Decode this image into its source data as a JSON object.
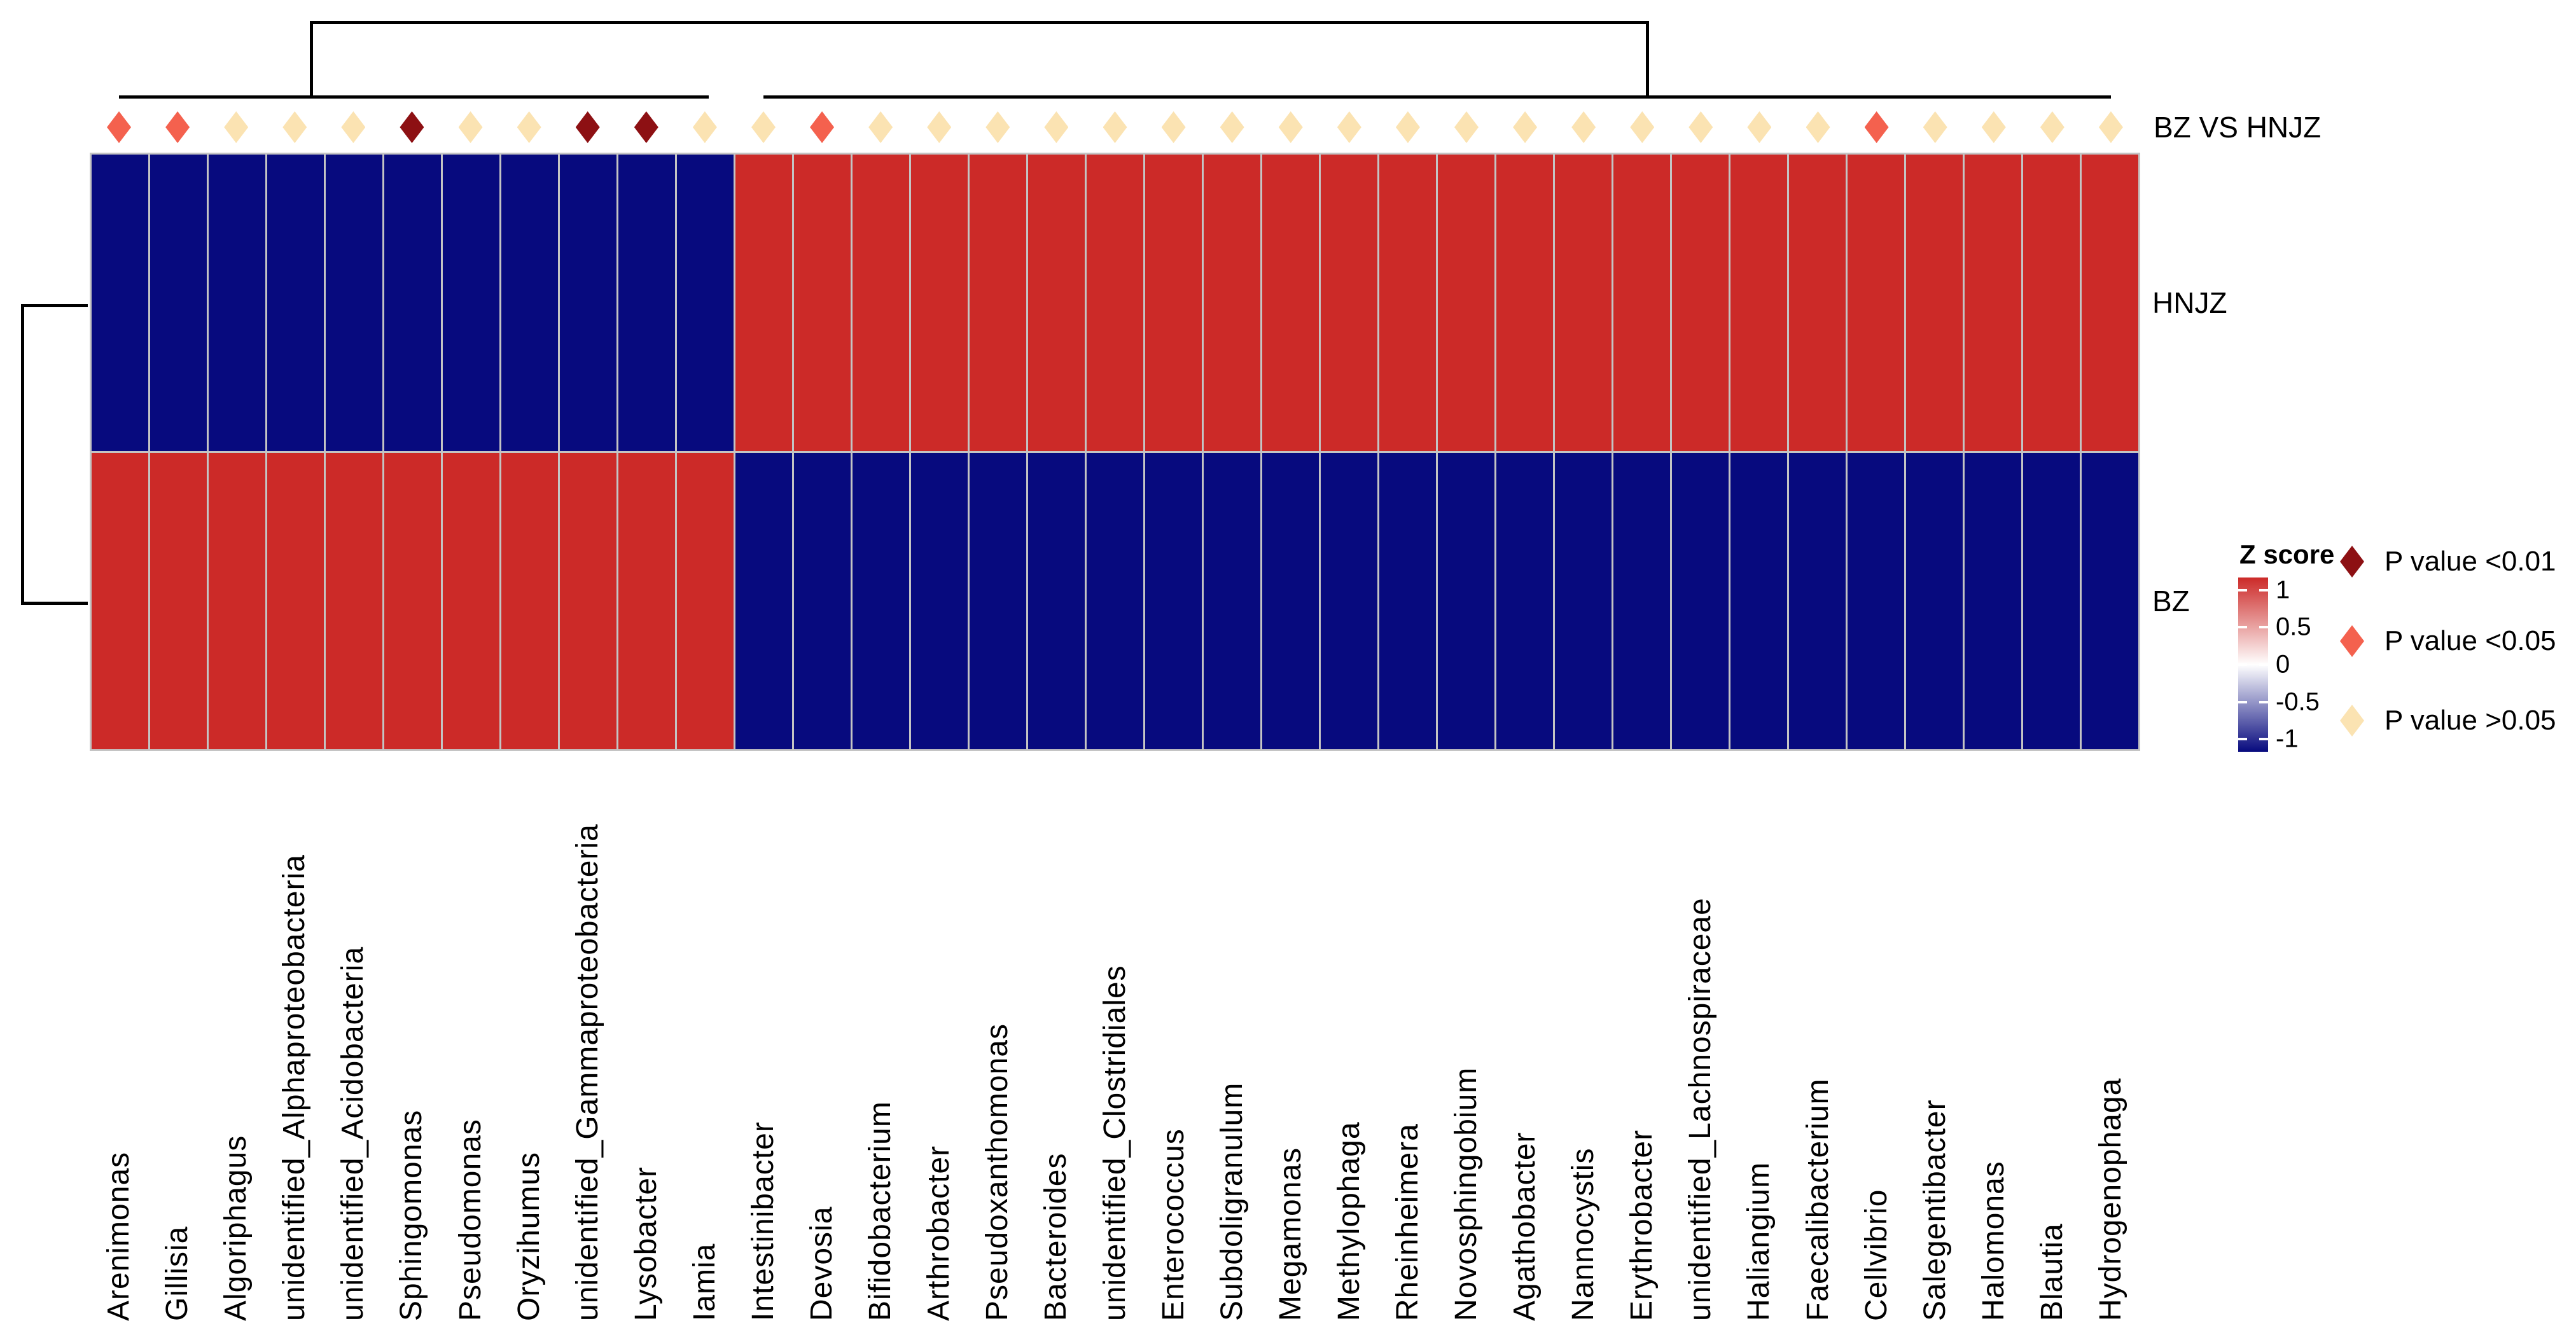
{
  "annotation_row_label": "BZ VS HNJZ",
  "row_labels": {
    "top": "HNJZ",
    "bottom": "BZ"
  },
  "legend": {
    "zscore_title": "Z score",
    "zscore_ticks": [
      {
        "label": "1",
        "value": 1
      },
      {
        "label": "0.5",
        "value": 0.5
      },
      {
        "label": "0",
        "value": 0
      },
      {
        "label": "-0.5",
        "value": -0.5
      },
      {
        "label": "-1",
        "value": -1
      }
    ],
    "pvalue_items": [
      {
        "label": "P value <0.01",
        "color": "#8D1013"
      },
      {
        "label": "P value <0.05",
        "color": "#F4614E"
      },
      {
        "label": "P value >0.05",
        "color": "#FBE3B2"
      }
    ]
  },
  "colors": {
    "cell_positive_red": "#CC2A28",
    "cell_negative_blue": "#070A7E",
    "gridline_gray": "#C4C4C4",
    "diamond_p01": "#8D1013",
    "diamond_p05": "#F4614E",
    "diamond_ns": "#FBE3B2",
    "dendrogram_black": "#000000"
  },
  "chart_data": {
    "type": "heatmap",
    "title": "",
    "rows": [
      "HNJZ",
      "BZ"
    ],
    "columns": [
      "Arenimonas",
      "Gillisia",
      "Algoriphagus",
      "unidentified_Alphaproteobacteria",
      "unidentified_Acidobacteria",
      "Sphingomonas",
      "Pseudomonas",
      "Oryzihumus",
      "unidentified_Gammaproteobacteria",
      "Lysobacter",
      "Iamia",
      "Intestinibacter",
      "Devosia",
      "Bifidobacterium",
      "Arthrobacter",
      "Pseudoxanthomonas",
      "Bacteroides",
      "unidentified_Clostridiales",
      "Enterococcus",
      "Subdoligranulum",
      "Megamonas",
      "Methylophaga",
      "Rheinheimera",
      "Novosphingobium",
      "Agathobacter",
      "Nannocystis",
      "Erythrobacter",
      "unidentified_Lachnospiraceae",
      "Haliangium",
      "Faecalibacterium",
      "Cellvibrio",
      "Salegentibacter",
      "Halomonas",
      "Blautia",
      "Hydrogenophaga"
    ],
    "values": {
      "HNJZ": [
        -1,
        -1,
        -1,
        -1,
        -1,
        -1,
        -1,
        -1,
        -1,
        -1,
        -1,
        1,
        1,
        1,
        1,
        1,
        1,
        1,
        1,
        1,
        1,
        1,
        1,
        1,
        1,
        1,
        1,
        1,
        1,
        1,
        1,
        1,
        1,
        1,
        1
      ],
      "BZ": [
        1,
        1,
        1,
        1,
        1,
        1,
        1,
        1,
        1,
        1,
        1,
        -1,
        -1,
        -1,
        -1,
        -1,
        -1,
        -1,
        -1,
        -1,
        -1,
        -1,
        -1,
        -1,
        -1,
        -1,
        -1,
        -1,
        -1,
        -1,
        -1,
        -1,
        -1,
        -1,
        -1
      ]
    },
    "column_pvalue_class": [
      "<0.05",
      "<0.05",
      ">0.05",
      ">0.05",
      ">0.05",
      "<0.01",
      ">0.05",
      ">0.05",
      "<0.01",
      "<0.01",
      ">0.05",
      ">0.05",
      "<0.05",
      ">0.05",
      ">0.05",
      ">0.05",
      ">0.05",
      ">0.05",
      ">0.05",
      ">0.05",
      ">0.05",
      ">0.05",
      ">0.05",
      ">0.05",
      ">0.05",
      ">0.05",
      ">0.05",
      ">0.05",
      ">0.05",
      ">0.05",
      "<0.05",
      ">0.05",
      ">0.05",
      ">0.05",
      ">0.05"
    ],
    "colorscale": {
      "label": "Z score",
      "min": -1.17,
      "max": 1.17,
      "ticks": [
        1,
        0.5,
        0,
        -0.5,
        -1
      ],
      "high_color": "#CC2A28",
      "mid_color": "#FFFFFF",
      "low_color": "#070A7E"
    },
    "legend_position": "right",
    "column_clusters": [
      {
        "name": "left-cluster",
        "columns_index_range": [
          0,
          10
        ]
      },
      {
        "name": "right-cluster",
        "columns_index_range": [
          11,
          34
        ]
      }
    ]
  }
}
